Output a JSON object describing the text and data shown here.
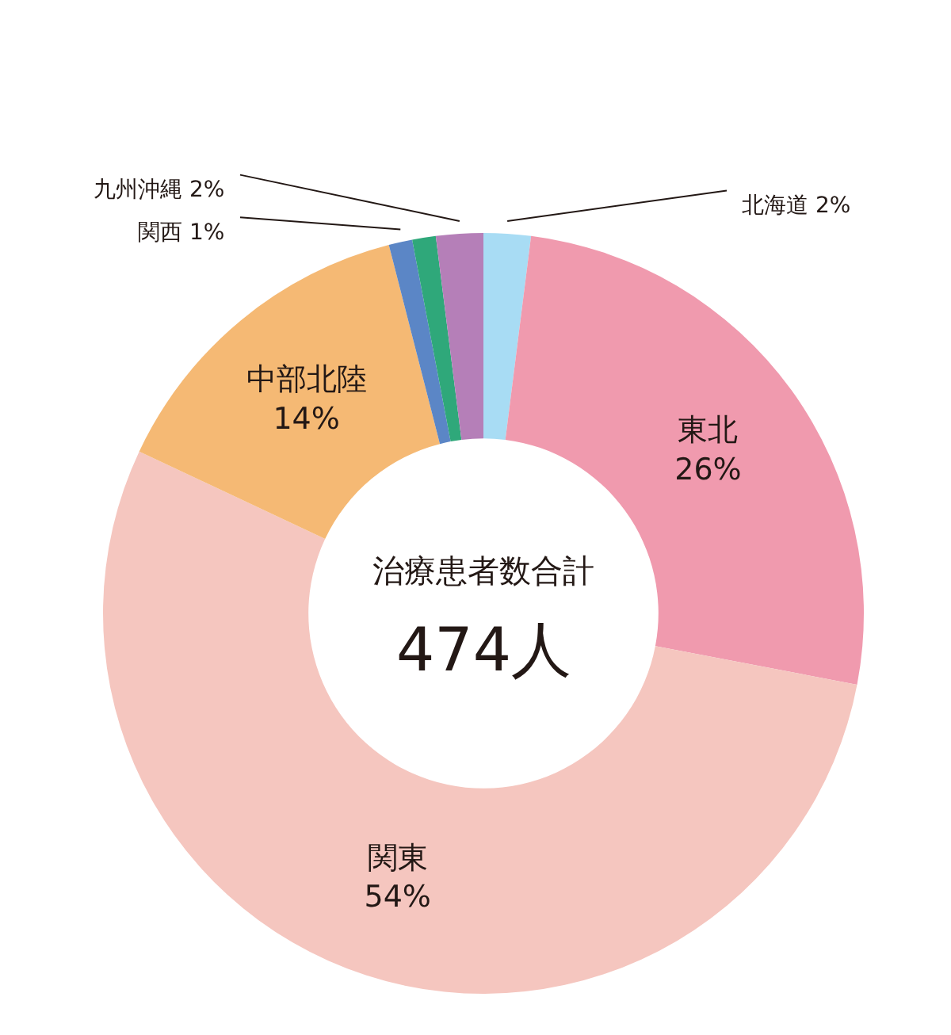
{
  "chart_data": {
    "type": "donut",
    "categories": [
      "北海道",
      "東北",
      "関東",
      "中部北陸",
      "関西",
      null,
      "九州沖縄"
    ],
    "values": [
      2,
      26,
      54,
      14,
      1,
      1,
      2
    ],
    "colors": [
      "#a8dcf4",
      "#f09aae",
      "#f5c6bf",
      "#f5b974",
      "#5b86c6",
      "#2fa87a",
      "#b57fb8"
    ],
    "value_labels": [
      "2%",
      "26%",
      "54%",
      "14%",
      "1%",
      null,
      "2%"
    ],
    "annotations": [
      "治療患者数合計",
      "474人"
    ]
  }
}
